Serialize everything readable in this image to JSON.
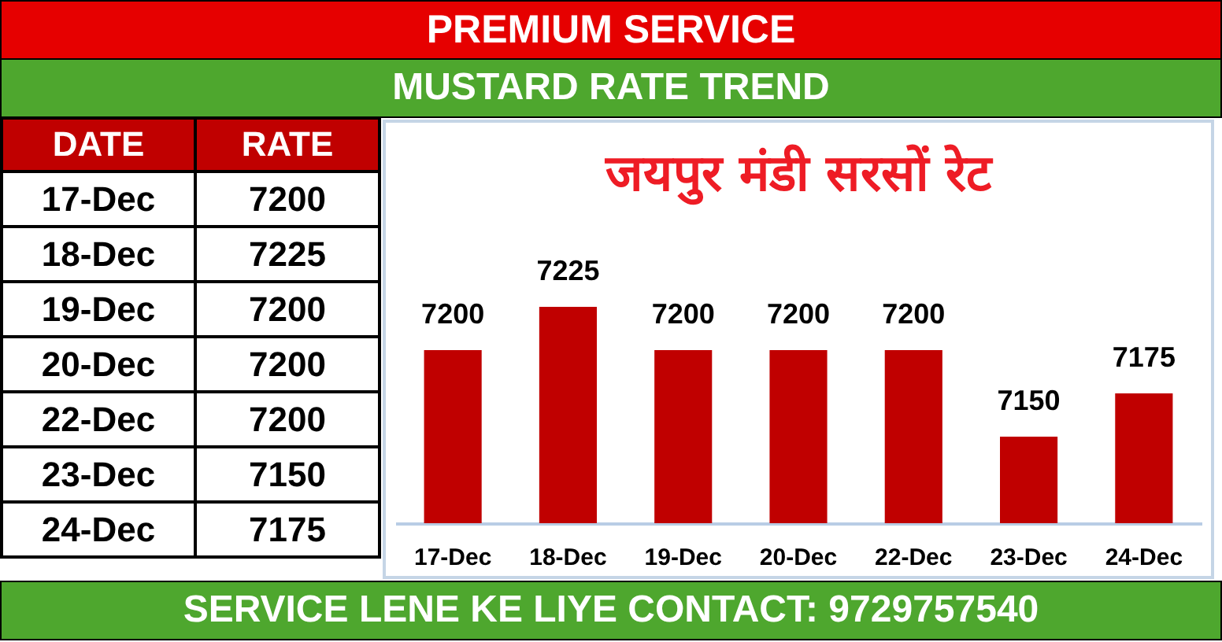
{
  "chart_data": {
    "type": "bar",
    "title": "PREMIUM SERVICE",
    "subtitle": "MUSTARD RATE TREND",
    "categories": [
      "17-Dec",
      "18-Dec",
      "19-Dec",
      "20-Dec",
      "22-Dec",
      "23-Dec",
      "24-Dec"
    ],
    "values": [
      7200,
      7225,
      7200,
      7200,
      7200,
      7150,
      7175
    ],
    "value_labels": [
      "7200",
      "7225",
      "7200",
      "7200",
      "7200",
      "7150",
      "7175"
    ],
    "color": "#c00000",
    "ylim": [
      7100,
      7225
    ],
    "tick_labels": "x",
    "annotations": [
      "जयपुर मंडी सरसों रेट",
      "DATE",
      "RATE",
      "SERVICE LENE KE LIYE CONTACT: 9729757540"
    ]
  }
}
